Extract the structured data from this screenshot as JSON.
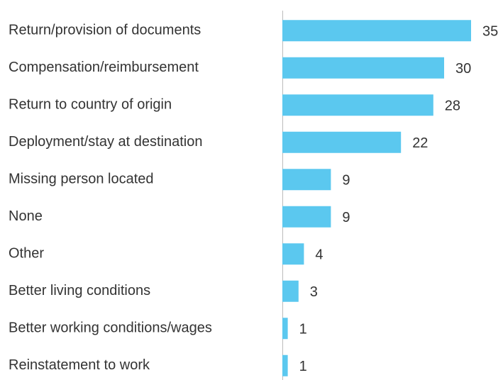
{
  "chart_data": {
    "type": "bar",
    "orientation": "horizontal",
    "categories": [
      "Return/provision of documents",
      "Compensation/reimbursement",
      "Return to country of origin",
      "Deployment/stay at destination",
      "Missing person located",
      "None",
      "Other",
      "Better living conditions",
      "Better working conditions/wages",
      "Reinstatement to work"
    ],
    "values": [
      35,
      30,
      28,
      22,
      9,
      9,
      4,
      3,
      1,
      1
    ],
    "color": "#5bc8ef"
  }
}
